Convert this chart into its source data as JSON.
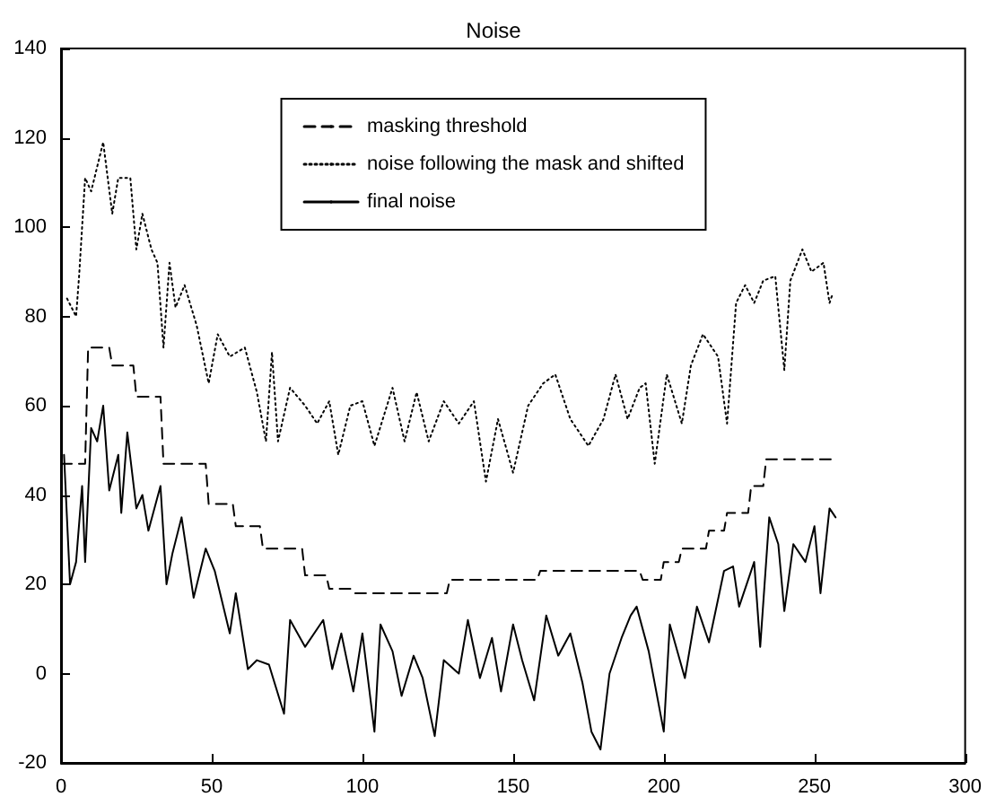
{
  "chart_data": {
    "type": "line",
    "title": "Noise",
    "xlim": [
      0,
      300
    ],
    "xticks": [
      0,
      50,
      100,
      150,
      200,
      250,
      300
    ],
    "ylim": [
      -20,
      140
    ],
    "yticks": [
      -20,
      0,
      20,
      40,
      60,
      80,
      100,
      120,
      140
    ],
    "grid": false,
    "legend": "top",
    "marker": "none",
    "series": [
      {
        "name": "masking threshold",
        "color": "#000000",
        "line_style": "dashed",
        "x": [
          0,
          8,
          9,
          16,
          17,
          24,
          25,
          33,
          34,
          48,
          49,
          57,
          58,
          66,
          67,
          80,
          81,
          88,
          89,
          96,
          97,
          128,
          129,
          158,
          159,
          192,
          193,
          199,
          200,
          205,
          206,
          214,
          215,
          220,
          221,
          228,
          229,
          233,
          234,
          256
        ],
        "values": [
          47,
          47,
          73,
          73,
          69,
          69,
          62,
          62,
          47,
          47,
          38,
          38,
          33,
          33,
          28,
          28,
          22,
          22,
          19,
          19,
          18,
          18,
          21,
          21,
          23,
          23,
          21,
          21,
          25,
          25,
          28,
          28,
          32,
          32,
          36,
          36,
          42,
          42,
          48,
          48
        ]
      },
      {
        "name": "noise following the mask and shifted",
        "color": "#000000",
        "line_style": "dotted",
        "x": [
          2,
          5,
          6,
          8,
          10,
          14,
          17,
          19,
          23,
          25,
          27,
          30,
          32,
          34,
          36,
          38,
          41,
          45,
          49,
          52,
          56,
          61,
          65,
          68,
          70,
          72,
          76,
          81,
          85,
          89,
          92,
          96,
          100,
          104,
          110,
          114,
          118,
          122,
          127,
          132,
          137,
          141,
          145,
          150,
          155,
          160,
          164,
          169,
          175,
          180,
          184,
          188,
          192,
          194,
          197,
          201,
          206,
          209,
          213,
          218,
          221,
          224,
          227,
          230,
          233,
          237,
          240,
          242,
          246,
          249,
          253,
          255,
          256
        ],
        "values": [
          84,
          80,
          89,
          111,
          108,
          119,
          103,
          111,
          111,
          95,
          103,
          95,
          92,
          73,
          92,
          82,
          87,
          78,
          65,
          76,
          71,
          73,
          63,
          52,
          72,
          52,
          64,
          60,
          56,
          61,
          49,
          60,
          61,
          51,
          64,
          52,
          63,
          52,
          61,
          56,
          61,
          43,
          57,
          45,
          60,
          65,
          67,
          57,
          51,
          57,
          67,
          57,
          64,
          65,
          47,
          67,
          56,
          69,
          76,
          71,
          56,
          83,
          87,
          83,
          88,
          89,
          68,
          88,
          95,
          90,
          92,
          83,
          85
        ]
      },
      {
        "name": "final noise",
        "color": "#000000",
        "line_style": "solid",
        "x": [
          1,
          3,
          5,
          7,
          8,
          10,
          12,
          14,
          16,
          19,
          20,
          22,
          25,
          27,
          29,
          33,
          35,
          37,
          40,
          44,
          48,
          51,
          56,
          58,
          62,
          65,
          69,
          74,
          76,
          81,
          87,
          90,
          93,
          97,
          100,
          104,
          106,
          110,
          113,
          117,
          120,
          124,
          127,
          132,
          135,
          139,
          143,
          146,
          150,
          153,
          157,
          161,
          165,
          169,
          173,
          176,
          179,
          182,
          186,
          189,
          191,
          195,
          200,
          202,
          207,
          211,
          215,
          220,
          223,
          225,
          230,
          232,
          235,
          238,
          240,
          243,
          247,
          250,
          252,
          255,
          257
        ],
        "values": [
          49,
          20,
          25,
          42,
          25,
          55,
          52,
          60,
          41,
          49,
          36,
          54,
          37,
          40,
          32,
          42,
          20,
          27,
          35,
          17,
          28,
          23,
          9,
          18,
          1,
          3,
          2,
          -9,
          12,
          6,
          12,
          1,
          9,
          -4,
          9,
          -13,
          11,
          5,
          -5,
          4,
          -1,
          -14,
          3,
          0,
          12,
          -1,
          8,
          -4,
          11,
          3,
          -6,
          13,
          4,
          9,
          -2,
          -13,
          -17,
          0,
          8,
          13,
          15,
          5,
          -13,
          11,
          -1,
          15,
          7,
          23,
          24,
          15,
          25,
          6,
          35,
          29,
          14,
          29,
          25,
          33,
          18,
          37,
          35
        ]
      }
    ]
  }
}
